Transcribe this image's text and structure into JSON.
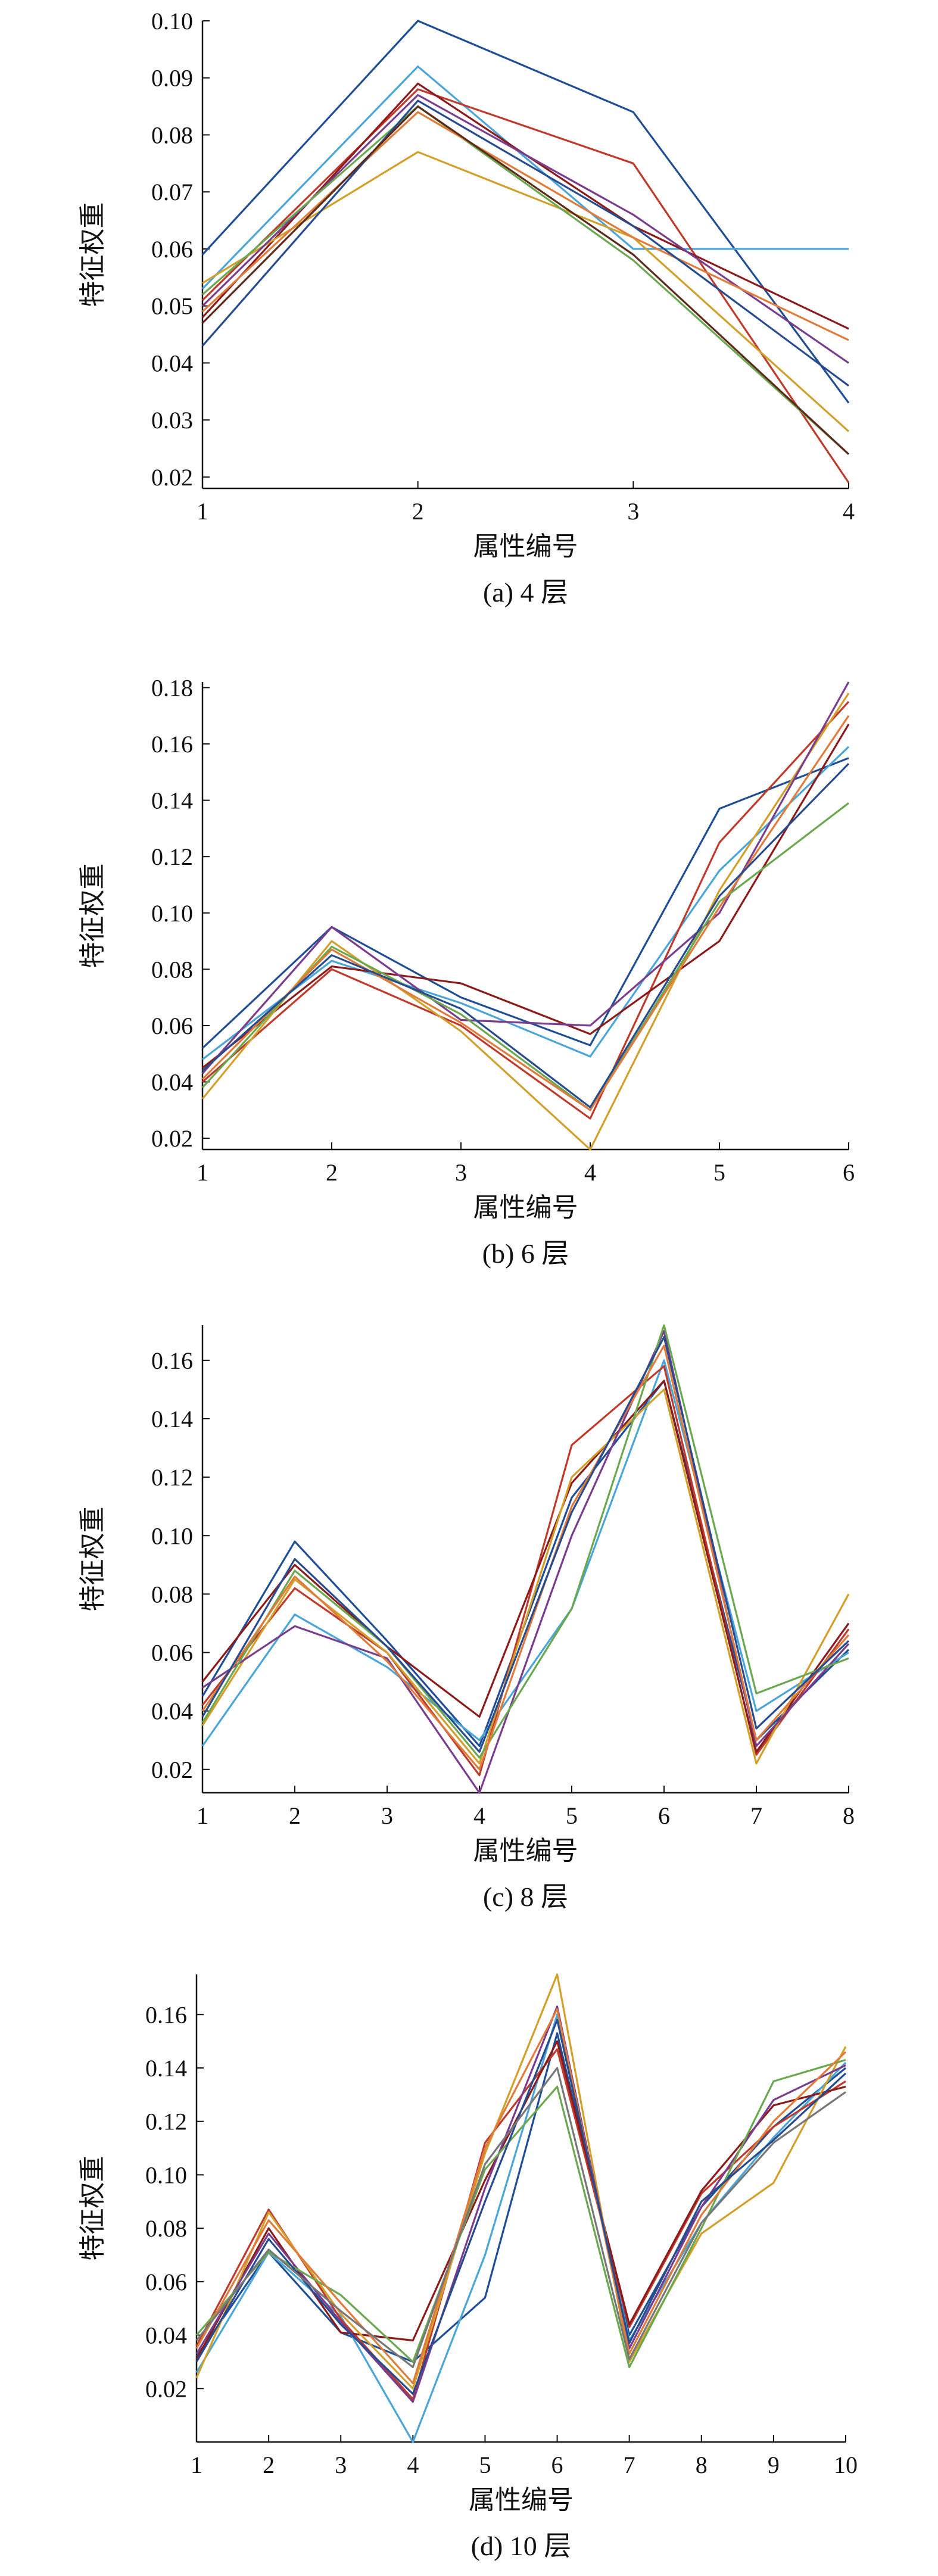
{
  "chart_data": [
    {
      "type": "line",
      "caption": "(a) 4 层",
      "xlabel": "属性编号",
      "ylabel": "特征权重",
      "x": [
        1,
        2,
        3,
        4
      ],
      "xlim": [
        1,
        4
      ],
      "ylim": [
        0.018,
        0.1
      ],
      "yticks": [
        "0.02",
        "0.03",
        "0.04",
        "0.05",
        "0.06",
        "0.07",
        "0.08",
        "0.09",
        "0.10"
      ],
      "series": [
        {
          "color": "#1f4e96",
          "values": [
            0.059,
            0.1,
            0.084,
            0.033
          ]
        },
        {
          "color": "#4aa5d8",
          "values": [
            0.053,
            0.092,
            0.06,
            0.06
          ]
        },
        {
          "color": "#c0392b",
          "values": [
            0.051,
            0.088,
            0.075,
            0.019
          ]
        },
        {
          "color": "#8b1a1a",
          "values": [
            0.048,
            0.089,
            0.064,
            0.046
          ]
        },
        {
          "color": "#d2a02a",
          "values": [
            0.054,
            0.077,
            0.062,
            0.028
          ]
        },
        {
          "color": "#7a3c8c",
          "values": [
            0.05,
            0.087,
            0.066,
            0.04
          ]
        },
        {
          "color": "#6aa84f",
          "values": [
            0.052,
            0.085,
            0.058,
            0.024
          ]
        },
        {
          "color": "#e07b39",
          "values": [
            0.049,
            0.084,
            0.062,
            0.044
          ]
        },
        {
          "color": "#274b8f",
          "values": [
            0.043,
            0.086,
            0.064,
            0.036
          ]
        },
        {
          "color": "#5c2a1a",
          "values": [
            0.047,
            0.085,
            0.059,
            0.024
          ]
        }
      ]
    },
    {
      "type": "line",
      "caption": "(b) 6 层",
      "xlabel": "属性编号",
      "ylabel": "特征权重",
      "x": [
        1,
        2,
        3,
        4,
        5,
        6
      ],
      "xlim": [
        1,
        6
      ],
      "ylim": [
        0.016,
        0.182
      ],
      "yticks": [
        "0.02",
        "0.04",
        "0.06",
        "0.08",
        "0.10",
        "0.12",
        "0.14",
        "0.16",
        "0.18"
      ],
      "series": [
        {
          "color": "#1f4e96",
          "values": [
            0.052,
            0.095,
            0.07,
            0.053,
            0.137,
            0.155
          ]
        },
        {
          "color": "#4aa5d8",
          "values": [
            0.048,
            0.083,
            0.068,
            0.049,
            0.115,
            0.159
          ]
        },
        {
          "color": "#c0392b",
          "values": [
            0.04,
            0.08,
            0.06,
            0.027,
            0.125,
            0.175
          ]
        },
        {
          "color": "#8b1a1a",
          "values": [
            0.045,
            0.081,
            0.075,
            0.057,
            0.09,
            0.167
          ]
        },
        {
          "color": "#d2a02a",
          "values": [
            0.034,
            0.09,
            0.058,
            0.016,
            0.108,
            0.178
          ]
        },
        {
          "color": "#7a3c8c",
          "values": [
            0.043,
            0.095,
            0.062,
            0.06,
            0.1,
            0.182
          ]
        },
        {
          "color": "#6aa84f",
          "values": [
            0.038,
            0.088,
            0.064,
            0.03,
            0.104,
            0.139
          ]
        },
        {
          "color": "#e07b39",
          "values": [
            0.041,
            0.087,
            0.061,
            0.03,
            0.102,
            0.17
          ]
        },
        {
          "color": "#274b8f",
          "values": [
            0.044,
            0.085,
            0.066,
            0.031,
            0.106,
            0.153
          ]
        }
      ]
    },
    {
      "type": "line",
      "caption": "(c) 8 层",
      "xlabel": "属性编号",
      "ylabel": "特征权重",
      "x": [
        1,
        2,
        3,
        4,
        5,
        6,
        7,
        8
      ],
      "xlim": [
        1,
        8
      ],
      "ylim": [
        0.012,
        0.172
      ],
      "yticks": [
        "0.02",
        "0.04",
        "0.06",
        "0.08",
        "0.10",
        "0.12",
        "0.14",
        "0.16"
      ],
      "series": [
        {
          "color": "#1f4e96",
          "values": [
            0.045,
            0.098,
            0.064,
            0.028,
            0.113,
            0.153,
            0.03,
            0.061
          ]
        },
        {
          "color": "#4aa5d8",
          "values": [
            0.028,
            0.073,
            0.055,
            0.03,
            0.075,
            0.16,
            0.04,
            0.06
          ]
        },
        {
          "color": "#c0392b",
          "values": [
            0.042,
            0.082,
            0.06,
            0.018,
            0.131,
            0.158,
            0.025,
            0.068
          ]
        },
        {
          "color": "#8b1a1a",
          "values": [
            0.05,
            0.09,
            0.062,
            0.038,
            0.118,
            0.153,
            0.026,
            0.07
          ]
        },
        {
          "color": "#d2a02a",
          "values": [
            0.035,
            0.085,
            0.06,
            0.022,
            0.12,
            0.15,
            0.022,
            0.08
          ]
        },
        {
          "color": "#7a3c8c",
          "values": [
            0.048,
            0.069,
            0.058,
            0.012,
            0.1,
            0.17,
            0.028,
            0.063
          ]
        },
        {
          "color": "#6aa84f",
          "values": [
            0.036,
            0.088,
            0.062,
            0.024,
            0.075,
            0.172,
            0.046,
            0.058
          ]
        },
        {
          "color": "#e07b39",
          "values": [
            0.04,
            0.086,
            0.057,
            0.02,
            0.11,
            0.165,
            0.03,
            0.066
          ]
        },
        {
          "color": "#274b8f",
          "values": [
            0.038,
            0.092,
            0.062,
            0.026,
            0.108,
            0.168,
            0.034,
            0.064
          ]
        }
      ]
    },
    {
      "type": "line",
      "caption": "(d) 10 层",
      "xlabel": "属性编号",
      "ylabel": "特征权重",
      "x": [
        1,
        2,
        3,
        4,
        5,
        6,
        7,
        8,
        9,
        10
      ],
      "xlim": [
        1,
        10
      ],
      "ylim": [
        0.0,
        0.175
      ],
      "yticks": [
        "0.02",
        "0.04",
        "0.06",
        "0.08",
        "0.10",
        "0.12",
        "0.14",
        "0.16"
      ],
      "series": [
        {
          "color": "#1f4e96",
          "values": [
            0.032,
            0.071,
            0.041,
            0.03,
            0.054,
            0.153,
            0.04,
            0.088,
            0.118,
            0.14
          ]
        },
        {
          "color": "#4aa5d8",
          "values": [
            0.026,
            0.071,
            0.047,
            0.0,
            0.07,
            0.16,
            0.038,
            0.082,
            0.114,
            0.142
          ]
        },
        {
          "color": "#c0392b",
          "values": [
            0.036,
            0.087,
            0.046,
            0.016,
            0.112,
            0.147,
            0.043,
            0.093,
            0.118,
            0.135
          ]
        },
        {
          "color": "#8b1a1a",
          "values": [
            0.031,
            0.08,
            0.041,
            0.038,
            0.098,
            0.15,
            0.044,
            0.094,
            0.126,
            0.133
          ]
        },
        {
          "color": "#d2a02a",
          "values": [
            0.024,
            0.086,
            0.048,
            0.02,
            0.108,
            0.175,
            0.03,
            0.078,
            0.097,
            0.148
          ]
        },
        {
          "color": "#7a3c8c",
          "values": [
            0.033,
            0.078,
            0.045,
            0.015,
            0.095,
            0.163,
            0.035,
            0.088,
            0.128,
            0.141
          ]
        },
        {
          "color": "#6aa84f",
          "values": [
            0.04,
            0.071,
            0.055,
            0.03,
            0.102,
            0.133,
            0.028,
            0.08,
            0.135,
            0.143
          ]
        },
        {
          "color": "#e07b39",
          "values": [
            0.035,
            0.083,
            0.052,
            0.022,
            0.11,
            0.162,
            0.033,
            0.085,
            0.12,
            0.146
          ]
        },
        {
          "color": "#274b8f",
          "values": [
            0.03,
            0.076,
            0.044,
            0.018,
            0.09,
            0.158,
            0.037,
            0.09,
            0.113,
            0.138
          ]
        },
        {
          "color": "#777777",
          "values": [
            0.038,
            0.072,
            0.049,
            0.028,
            0.104,
            0.14,
            0.031,
            0.082,
            0.112,
            0.131
          ]
        }
      ]
    }
  ]
}
